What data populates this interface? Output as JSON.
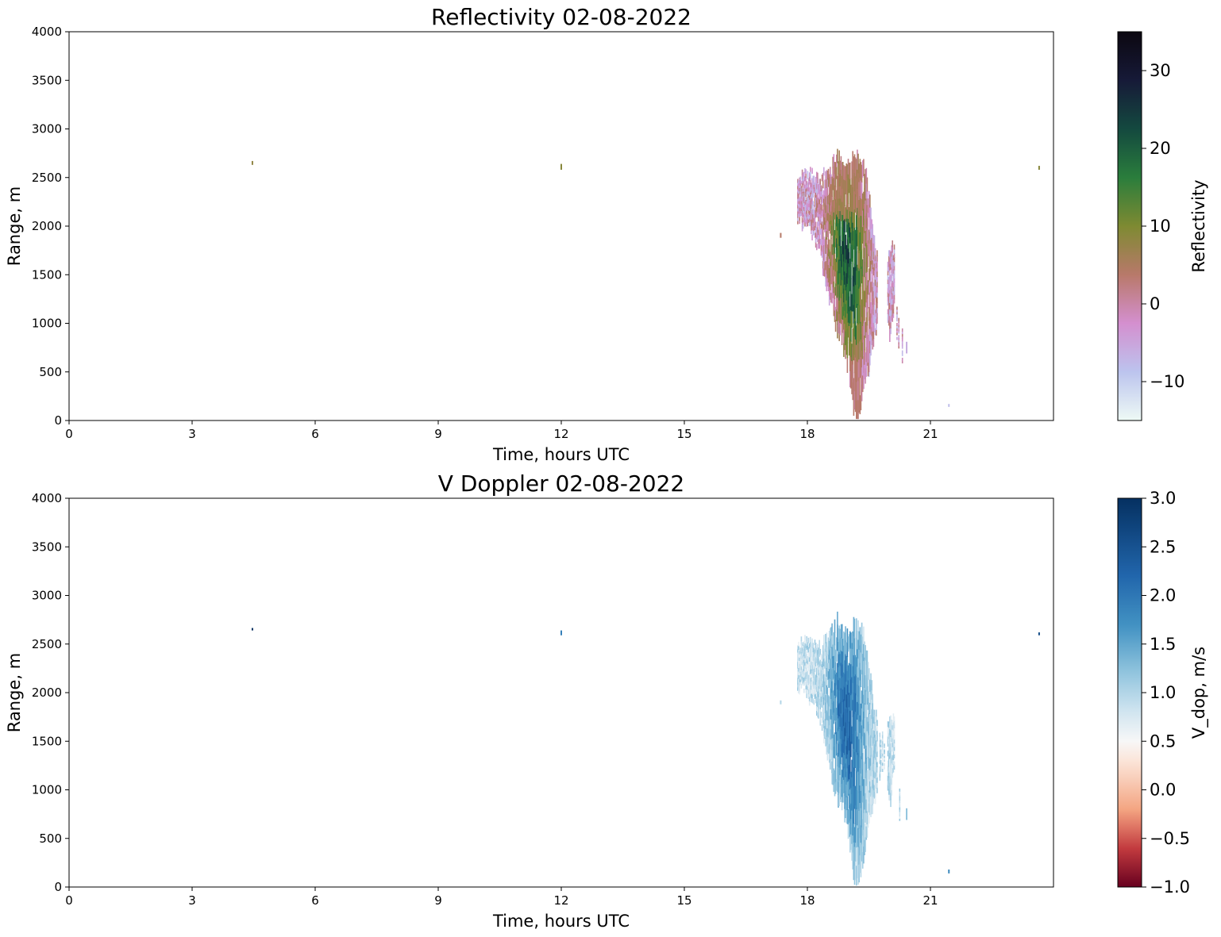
{
  "chart_data": [
    {
      "type": "heatmap",
      "title": "Reflectivity 02-08-2022",
      "xlabel": "Time, hours UTC",
      "ylabel": "Range, m",
      "xlim": [
        0,
        24
      ],
      "ylim": [
        0,
        4000
      ],
      "xticks": [
        0,
        3,
        6,
        9,
        12,
        15,
        18,
        21
      ],
      "yticks": [
        0,
        500,
        1000,
        1500,
        2000,
        2500,
        3000,
        3500,
        4000
      ],
      "colorbar": {
        "label": "Reflectivity",
        "vmin": -15,
        "vmax": 35,
        "ticks": [
          -10,
          0,
          10,
          20,
          30
        ],
        "tick_labels": [
          "−10",
          "0",
          "10",
          "20",
          "30"
        ],
        "colormap": "cubehelix_r",
        "stops": [
          "#eefaf5",
          "#bcc4ee",
          "#d48fcf",
          "#b8796a",
          "#7e8a32",
          "#2a7d3c",
          "#14493f",
          "#161a38",
          "#0c0710"
        ]
      },
      "features": [
        {
          "kind": "speck",
          "t": 4.47,
          "r": [
            2630,
            2670
          ],
          "z": 8
        },
        {
          "kind": "speck",
          "t": 12.0,
          "r": [
            2580,
            2640
          ],
          "z": 9
        },
        {
          "kind": "speck",
          "t": 23.65,
          "r": [
            2580,
            2620
          ],
          "z": 9
        },
        {
          "kind": "speck",
          "t": 17.35,
          "r": [
            1880,
            1930
          ],
          "z": 4
        },
        {
          "kind": "speck",
          "t": 20.42,
          "r": [
            690,
            810
          ],
          "z": -6
        },
        {
          "kind": "speck",
          "t": 21.45,
          "r": [
            140,
            170
          ],
          "z": -8
        },
        {
          "kind": "speck",
          "t": 19.5,
          "r": [
            450,
            520
          ],
          "z": -8
        },
        {
          "kind": "storm",
          "t": [
            17.75,
            20.35
          ],
          "r": [
            20,
            2770
          ],
          "z": [
            -8,
            26
          ]
        }
      ]
    },
    {
      "type": "heatmap",
      "title": "V Doppler 02-08-2022",
      "xlabel": "Time, hours UTC",
      "ylabel": "Range, m",
      "xlim": [
        0,
        24
      ],
      "ylim": [
        0,
        4000
      ],
      "xticks": [
        0,
        3,
        6,
        9,
        12,
        15,
        18,
        21
      ],
      "yticks": [
        0,
        500,
        1000,
        1500,
        2000,
        2500,
        3000,
        3500,
        4000
      ],
      "colorbar": {
        "label": "V_dop, m/s",
        "vmin": -1.0,
        "vmax": 3.0,
        "ticks": [
          -1.0,
          -0.5,
          0.0,
          0.5,
          1.0,
          1.5,
          2.0,
          2.5,
          3.0
        ],
        "tick_labels": [
          "−1.0",
          "−0.5",
          "0.0",
          "0.5",
          "1.0",
          "1.5",
          "2.0",
          "2.5",
          "3.0"
        ],
        "colormap": "RdBu",
        "stops": [
          "#67001f",
          "#c33b3f",
          "#f4a582",
          "#fbe3d6",
          "#f7f7f7",
          "#d1e5f0",
          "#92c5de",
          "#4393c3",
          "#2166ac",
          "#053061"
        ],
        "stop_positions": [
          0.0,
          0.1,
          0.2,
          0.32,
          0.375,
          0.45,
          0.55,
          0.67,
          0.8,
          1.0
        ]
      },
      "features": [
        {
          "kind": "speck",
          "t": 4.47,
          "r": [
            2640,
            2665
          ],
          "v": 3.0
        },
        {
          "kind": "speck",
          "t": 12.0,
          "r": [
            2590,
            2640
          ],
          "v": 1.9
        },
        {
          "kind": "speck",
          "t": 23.65,
          "r": [
            2590,
            2620
          ],
          "v": 2.6
        },
        {
          "kind": "speck",
          "t": 17.35,
          "r": [
            1880,
            1920
          ],
          "v": 1.0
        },
        {
          "kind": "speck",
          "t": 20.42,
          "r": [
            690,
            810
          ],
          "v": 1.2
        },
        {
          "kind": "speck",
          "t": 21.45,
          "r": [
            140,
            180
          ],
          "v": 1.8
        },
        {
          "kind": "storm",
          "t": [
            17.75,
            20.35
          ],
          "r": [
            20,
            2770
          ],
          "v": [
            0.6,
            2.4
          ]
        }
      ]
    }
  ]
}
